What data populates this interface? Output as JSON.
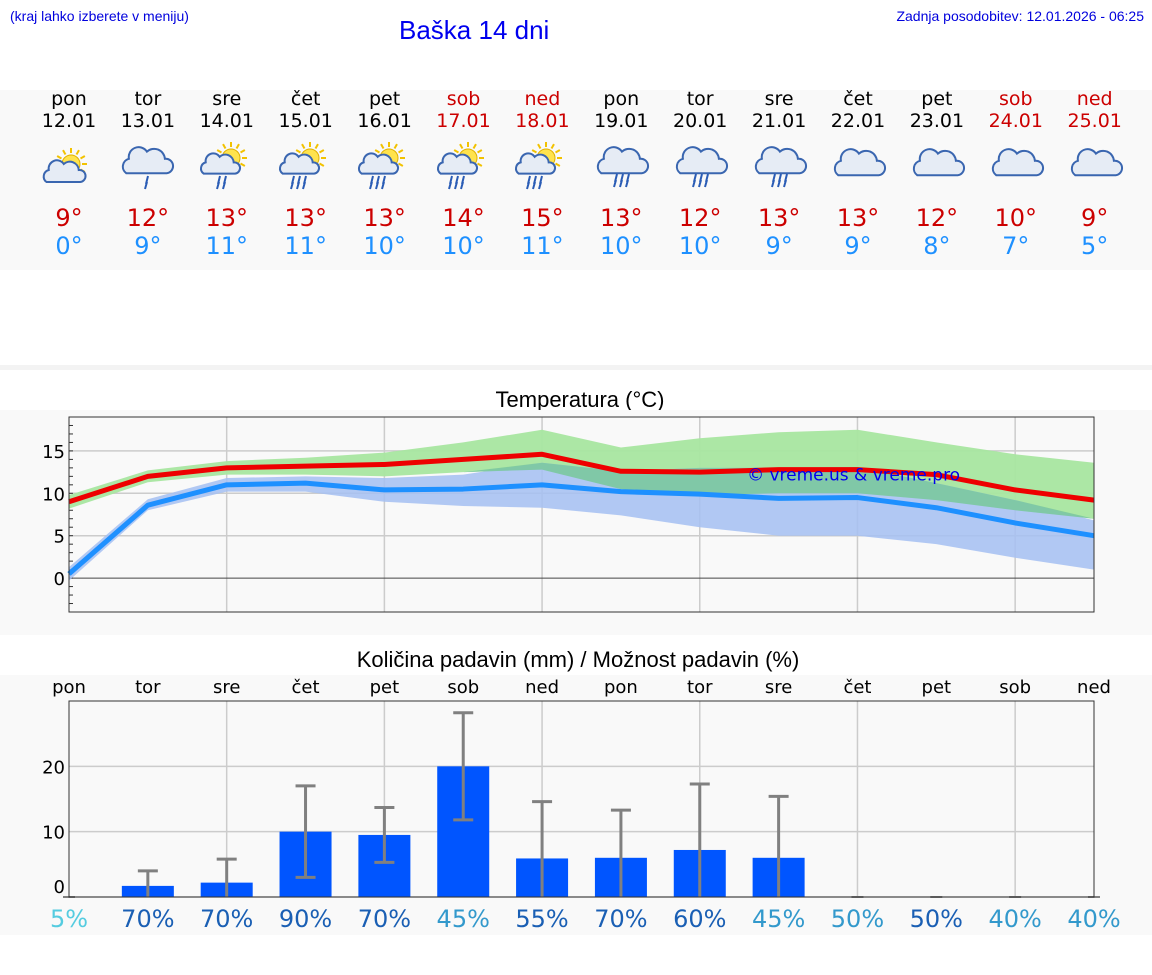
{
  "header": {
    "menu_hint": "(kraj lahko izberete v meniju)",
    "title": "Baška 14 dni",
    "last_update": "Zadnja posodobitev: 12.01.2026 - 06:25"
  },
  "days": [
    {
      "name": "pon",
      "date": "12.01",
      "weekend": false,
      "icon": "partly-cloudy-icon",
      "tmax": "9°",
      "tmin": "0°"
    },
    {
      "name": "tor",
      "date": "13.01",
      "weekend": false,
      "icon": "cloud-rain-icon",
      "tmax": "12°",
      "tmin": "9°"
    },
    {
      "name": "sre",
      "date": "14.01",
      "weekend": false,
      "icon": "sun-cloud-rain-icon",
      "tmax": "13°",
      "tmin": "11°"
    },
    {
      "name": "čet",
      "date": "15.01",
      "weekend": false,
      "icon": "sun-cloud-heavy-rain-icon",
      "tmax": "13°",
      "tmin": "11°"
    },
    {
      "name": "pet",
      "date": "16.01",
      "weekend": false,
      "icon": "sun-cloud-heavy-rain-icon",
      "tmax": "13°",
      "tmin": "10°"
    },
    {
      "name": "sob",
      "date": "17.01",
      "weekend": true,
      "icon": "sun-cloud-heavy-rain-icon",
      "tmax": "14°",
      "tmin": "10°"
    },
    {
      "name": "ned",
      "date": "18.01",
      "weekend": true,
      "icon": "sun-cloud-heavy-rain-icon",
      "tmax": "15°",
      "tmin": "11°"
    },
    {
      "name": "pon",
      "date": "19.01",
      "weekend": false,
      "icon": "cloud-heavy-rain-icon",
      "tmax": "13°",
      "tmin": "10°"
    },
    {
      "name": "tor",
      "date": "20.01",
      "weekend": false,
      "icon": "cloud-heavy-rain-icon",
      "tmax": "12°",
      "tmin": "10°"
    },
    {
      "name": "sre",
      "date": "21.01",
      "weekend": false,
      "icon": "cloud-heavy-rain-icon",
      "tmax": "13°",
      "tmin": "9°"
    },
    {
      "name": "čet",
      "date": "22.01",
      "weekend": false,
      "icon": "cloudy-icon",
      "tmax": "13°",
      "tmin": "9°"
    },
    {
      "name": "pet",
      "date": "23.01",
      "weekend": false,
      "icon": "cloudy-icon",
      "tmax": "12°",
      "tmin": "8°"
    },
    {
      "name": "sob",
      "date": "24.01",
      "weekend": true,
      "icon": "cloudy-icon",
      "tmax": "10°",
      "tmin": "7°"
    },
    {
      "name": "ned",
      "date": "25.01",
      "weekend": true,
      "icon": "cloudy-icon",
      "tmax": "9°",
      "tmin": "5°"
    }
  ],
  "colors": {
    "max_line": "#ee0000",
    "min_line": "#1e90ff",
    "max_band": "#a8e6a0",
    "min_band": "#a4bff2",
    "overlap_band": "#7cc8a0",
    "bar": "#0055ff",
    "error_bar": "#808080",
    "watermark": "#0000ee"
  },
  "chart_data": [
    {
      "type": "line",
      "title": "Temperatura (°C)",
      "watermark": "© vreme.us & vreme.pro",
      "ylim": [
        -4,
        19
      ],
      "yticks": [
        0,
        5,
        10,
        15
      ],
      "x": [
        0,
        1,
        2,
        3,
        4,
        5,
        6,
        7,
        8,
        9,
        10,
        11,
        12,
        13
      ],
      "series": [
        {
          "name": "max",
          "values": [
            9,
            12,
            13,
            13.2,
            13.4,
            14,
            14.6,
            12.6,
            12.5,
            12.8,
            12.8,
            12.2,
            10.4,
            9.2
          ]
        },
        {
          "name": "min",
          "values": [
            0.5,
            8.6,
            11,
            11.2,
            10.4,
            10.5,
            11,
            10.2,
            9.9,
            9.4,
            9.5,
            8.3,
            6.5,
            5
          ]
        },
        {
          "name": "max_range_low",
          "values": [
            8.2,
            11.3,
            12.2,
            12.2,
            12,
            12.5,
            12.8,
            10.5,
            9.8,
            10,
            10,
            9.2,
            8,
            7
          ]
        },
        {
          "name": "max_range_high",
          "values": [
            9.8,
            12.7,
            13.8,
            14.2,
            14.8,
            16,
            17.5,
            15.4,
            16.5,
            17.2,
            17.5,
            16,
            14.6,
            13.6
          ]
        },
        {
          "name": "min_range_low",
          "values": [
            -0.3,
            8,
            10.2,
            10.2,
            9,
            8.5,
            8.3,
            7.4,
            6,
            5,
            5,
            4,
            2.4,
            1
          ]
        },
        {
          "name": "min_range_high",
          "values": [
            1.3,
            9.3,
            11.8,
            12,
            11.8,
            12.2,
            13.6,
            12.6,
            13,
            13,
            13.1,
            11.2,
            9.2,
            6.8
          ]
        }
      ]
    },
    {
      "type": "bar",
      "title": "Količina padavin (mm) / Možnost padavin (%)",
      "categories": [
        "pon",
        "tor",
        "sre",
        "čet",
        "pet",
        "sob",
        "ned",
        "pon",
        "tor",
        "sre",
        "čet",
        "pet",
        "sob",
        "ned"
      ],
      "ylim": [
        0,
        30
      ],
      "yticks": [
        0,
        10,
        20
      ],
      "values": [
        0,
        1.7,
        2.2,
        10,
        9.5,
        20,
        5.9,
        6,
        7.2,
        6,
        0,
        0,
        0,
        0
      ],
      "err_low": [
        0,
        0,
        0,
        3,
        5.3,
        11.8,
        0,
        0,
        0,
        0,
        0,
        0,
        0,
        0
      ],
      "err_high": [
        0,
        4,
        5.8,
        17,
        13.7,
        28.2,
        14.6,
        13.3,
        17.3,
        15.4,
        0,
        0,
        0,
        0
      ],
      "probabilities": [
        {
          "label": "5%",
          "color": "#55cce0"
        },
        {
          "label": "70%",
          "color": "#1a5fb4"
        },
        {
          "label": "70%",
          "color": "#1a5fb4"
        },
        {
          "label": "90%",
          "color": "#1a5fb4"
        },
        {
          "label": "70%",
          "color": "#1a5fb4"
        },
        {
          "label": "45%",
          "color": "#3399cc"
        },
        {
          "label": "55%",
          "color": "#1a5fb4"
        },
        {
          "label": "70%",
          "color": "#1a5fb4"
        },
        {
          "label": "60%",
          "color": "#1a5fb4"
        },
        {
          "label": "45%",
          "color": "#3399cc"
        },
        {
          "label": "50%",
          "color": "#3399cc"
        },
        {
          "label": "50%",
          "color": "#1a5fb4"
        },
        {
          "label": "40%",
          "color": "#3399cc"
        },
        {
          "label": "40%",
          "color": "#3399cc"
        }
      ]
    }
  ]
}
